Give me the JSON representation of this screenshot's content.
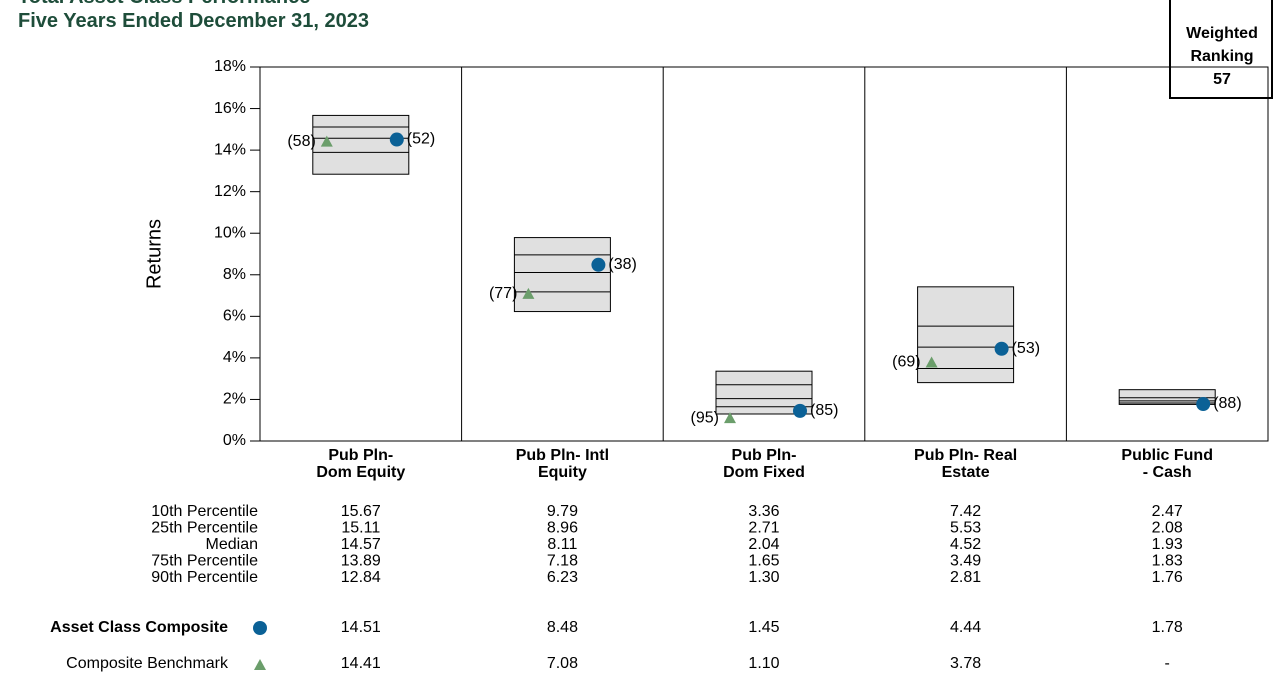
{
  "chart_data": {
    "type": "percentile_box",
    "title": "Total Asset Class Performance",
    "subtitle": "Five Years Ended December 31, 2023",
    "y_label": "Returns",
    "weighted_ranking": {
      "label_lines": [
        "Weighted",
        "Ranking"
      ],
      "value": 57
    },
    "categories": [
      [
        "Pub Pln-",
        "Dom Equity"
      ],
      [
        "Pub Pln- Intl",
        "Equity"
      ],
      [
        "Pub Pln-",
        "Dom Fixed"
      ],
      [
        "Pub Pln- Real",
        "Estate"
      ],
      [
        "Public Fund",
        "- Cash"
      ]
    ],
    "ylim": [
      0,
      18
    ],
    "yticks": [
      {
        "value": 0,
        "label": "0%"
      },
      {
        "value": 2,
        "label": "2%"
      },
      {
        "value": 4,
        "label": "4%"
      },
      {
        "value": 6,
        "label": "6%"
      },
      {
        "value": 8,
        "label": "8%"
      },
      {
        "value": 10,
        "label": "10%"
      },
      {
        "value": 12,
        "label": "12%"
      },
      {
        "value": 14,
        "label": "14%"
      },
      {
        "value": 16,
        "label": "16%"
      },
      {
        "value": 18,
        "label": "18%"
      }
    ],
    "box_color": "#e0e0e0",
    "series": [
      {
        "name": "10th Percentile",
        "values": [
          15.67,
          9.79,
          3.36,
          7.42,
          2.47
        ],
        "value_labels": [
          "15.67",
          "9.79",
          "3.36",
          "7.42",
          "2.47"
        ]
      },
      {
        "name": "25th Percentile",
        "values": [
          15.11,
          8.96,
          2.71,
          5.53,
          2.08
        ],
        "value_labels": [
          "15.11",
          "8.96",
          "2.71",
          "5.53",
          "2.08"
        ]
      },
      {
        "name": "Median",
        "values": [
          14.57,
          8.11,
          2.04,
          4.52,
          1.93
        ],
        "value_labels": [
          "14.57",
          "8.11",
          "2.04",
          "4.52",
          "1.93"
        ]
      },
      {
        "name": "75th Percentile",
        "values": [
          13.89,
          7.18,
          1.65,
          3.49,
          1.83
        ],
        "value_labels": [
          "13.89",
          "7.18",
          "1.65",
          "3.49",
          "1.83"
        ]
      },
      {
        "name": "90th Percentile",
        "values": [
          12.84,
          6.23,
          1.3,
          2.81,
          1.76
        ],
        "value_labels": [
          "12.84",
          "6.23",
          "1.30",
          "2.81",
          "1.76"
        ]
      }
    ],
    "composite": {
      "name": "Asset Class Composite",
      "color": "#0b6196",
      "values": [
        14.51,
        8.48,
        1.45,
        4.44,
        1.78
      ],
      "value_labels": [
        "14.51",
        "8.48",
        "1.45",
        "4.44",
        "1.78"
      ],
      "ranks": [
        52,
        38,
        85,
        53,
        88
      ],
      "rank_labels": [
        "(52)",
        "(38)",
        "(85)",
        "(53)",
        "(88)"
      ]
    },
    "benchmark": {
      "name": "Composite Benchmark",
      "color": "#6b9e6b",
      "values": [
        14.41,
        7.08,
        1.1,
        3.78,
        null
      ],
      "value_labels": [
        "14.41",
        "7.08",
        "1.10",
        "3.78",
        "-"
      ],
      "ranks": [
        58,
        77,
        95,
        69,
        null
      ],
      "rank_labels": [
        "(58)",
        "(77)",
        "(95)",
        "(69)",
        null
      ]
    }
  }
}
